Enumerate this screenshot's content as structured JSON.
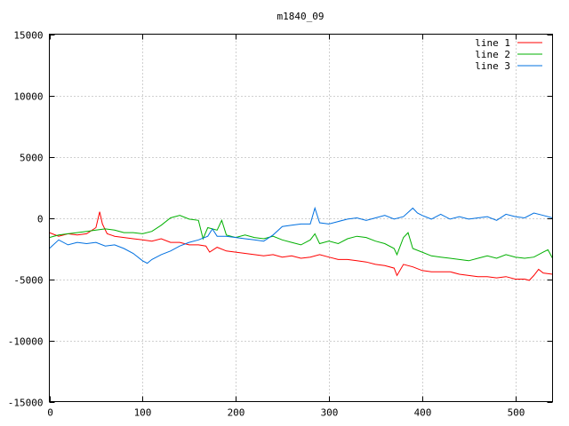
{
  "chart_data": {
    "type": "line",
    "title": "m1840_09",
    "xlabel": "",
    "ylabel": "",
    "xlim": [
      0,
      540
    ],
    "ylim": [
      -15000,
      15000
    ],
    "xticks": [
      0,
      100,
      200,
      300,
      400,
      500
    ],
    "yticks": [
      -15000,
      -10000,
      -5000,
      0,
      5000,
      10000,
      15000
    ],
    "grid": true,
    "legend_position": "top-right",
    "series": [
      {
        "name": "line 1",
        "color": "#ff0000",
        "x": [
          0,
          10,
          20,
          30,
          40,
          50,
          54,
          57,
          62,
          70,
          80,
          90,
          100,
          110,
          120,
          130,
          140,
          150,
          160,
          168,
          172,
          180,
          190,
          200,
          210,
          220,
          230,
          240,
          250,
          260,
          270,
          280,
          290,
          300,
          310,
          320,
          330,
          340,
          350,
          360,
          370,
          373,
          380,
          390,
          400,
          410,
          420,
          430,
          440,
          450,
          460,
          470,
          480,
          490,
          500,
          510,
          515,
          520,
          525,
          530,
          540
        ],
        "y": [
          -1200,
          -1500,
          -1300,
          -1400,
          -1300,
          -800,
          500,
          -500,
          -1300,
          -1500,
          -1600,
          -1700,
          -1800,
          -1900,
          -1700,
          -2000,
          -2000,
          -2200,
          -2200,
          -2300,
          -2800,
          -2400,
          -2700,
          -2800,
          -2900,
          -3000,
          -3100,
          -3000,
          -3200,
          -3100,
          -3300,
          -3200,
          -3000,
          -3200,
          -3400,
          -3400,
          -3500,
          -3600,
          -3800,
          -3900,
          -4100,
          -4700,
          -3800,
          -4000,
          -4300,
          -4400,
          -4400,
          -4400,
          -4600,
          -4700,
          -4800,
          -4800,
          -4900,
          -4800,
          -5000,
          -5000,
          -5100,
          -4700,
          -4200,
          -4500,
          -4600
        ]
      },
      {
        "name": "line 2",
        "color": "#00b000",
        "x": [
          0,
          10,
          20,
          30,
          40,
          50,
          60,
          70,
          80,
          90,
          100,
          110,
          120,
          130,
          140,
          150,
          160,
          165,
          170,
          180,
          185,
          190,
          200,
          210,
          220,
          230,
          240,
          250,
          260,
          270,
          280,
          285,
          290,
          300,
          310,
          320,
          330,
          340,
          350,
          360,
          370,
          373,
          380,
          385,
          390,
          400,
          410,
          420,
          430,
          440,
          450,
          460,
          470,
          480,
          490,
          500,
          510,
          520,
          530,
          535,
          540
        ],
        "y": [
          -1600,
          -1400,
          -1300,
          -1200,
          -1100,
          -1000,
          -900,
          -1000,
          -1200,
          -1200,
          -1300,
          -1100,
          -600,
          0,
          200,
          -100,
          -200,
          -1700,
          -800,
          -1000,
          -200,
          -1400,
          -1600,
          -1400,
          -1600,
          -1700,
          -1500,
          -1800,
          -2000,
          -2200,
          -1800,
          -1300,
          -2100,
          -1900,
          -2100,
          -1700,
          -1500,
          -1600,
          -1900,
          -2100,
          -2500,
          -3000,
          -1600,
          -1200,
          -2500,
          -2800,
          -3100,
          -3200,
          -3300,
          -3400,
          -3500,
          -3300,
          -3100,
          -3300,
          -3000,
          -3200,
          -3300,
          -3200,
          -2800,
          -2600,
          -3300
        ]
      },
      {
        "name": "line 3",
        "color": "#0070e0",
        "x": [
          0,
          10,
          20,
          30,
          40,
          50,
          60,
          70,
          80,
          90,
          100,
          105,
          110,
          120,
          130,
          140,
          150,
          160,
          170,
          175,
          180,
          190,
          200,
          210,
          220,
          230,
          240,
          250,
          260,
          270,
          280,
          285,
          290,
          300,
          310,
          320,
          330,
          340,
          350,
          360,
          370,
          380,
          390,
          395,
          400,
          410,
          420,
          430,
          440,
          450,
          460,
          470,
          480,
          490,
          500,
          510,
          520,
          530,
          540
        ],
        "y": [
          -2500,
          -1800,
          -2200,
          -2000,
          -2100,
          -2000,
          -2300,
          -2200,
          -2500,
          -2900,
          -3500,
          -3700,
          -3400,
          -3000,
          -2700,
          -2300,
          -2000,
          -1800,
          -1500,
          -900,
          -1500,
          -1500,
          -1600,
          -1700,
          -1800,
          -1900,
          -1400,
          -700,
          -600,
          -500,
          -500,
          800,
          -400,
          -500,
          -300,
          -100,
          0,
          -200,
          0,
          200,
          -100,
          100,
          800,
          400,
          200,
          -100,
          300,
          -100,
          100,
          -100,
          0,
          100,
          -200,
          300,
          100,
          0,
          400,
          200,
          0
        ]
      }
    ]
  }
}
